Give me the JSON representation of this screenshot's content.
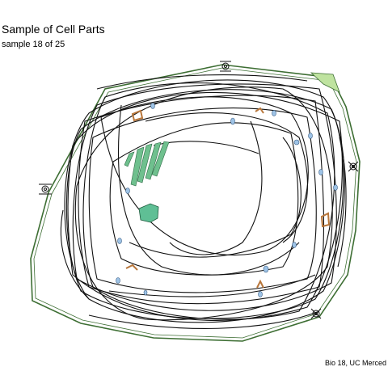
{
  "figure": {
    "title": "Sample of Cell Parts",
    "subtitle": "sample 18 of 25",
    "caption": "Bio 18, UC Merced"
  },
  "colors": {
    "membrane": "#3d6e33",
    "cytoplasm_fill": "#ffffff",
    "cytoskeleton": "#111111",
    "golgi": "#6fc08e",
    "nucleolus": "#5fbf95",
    "vesicle": "#9ec3e6",
    "mitochondrion": "#b8763a",
    "lysosome_patch": "#bfe3a0"
  }
}
